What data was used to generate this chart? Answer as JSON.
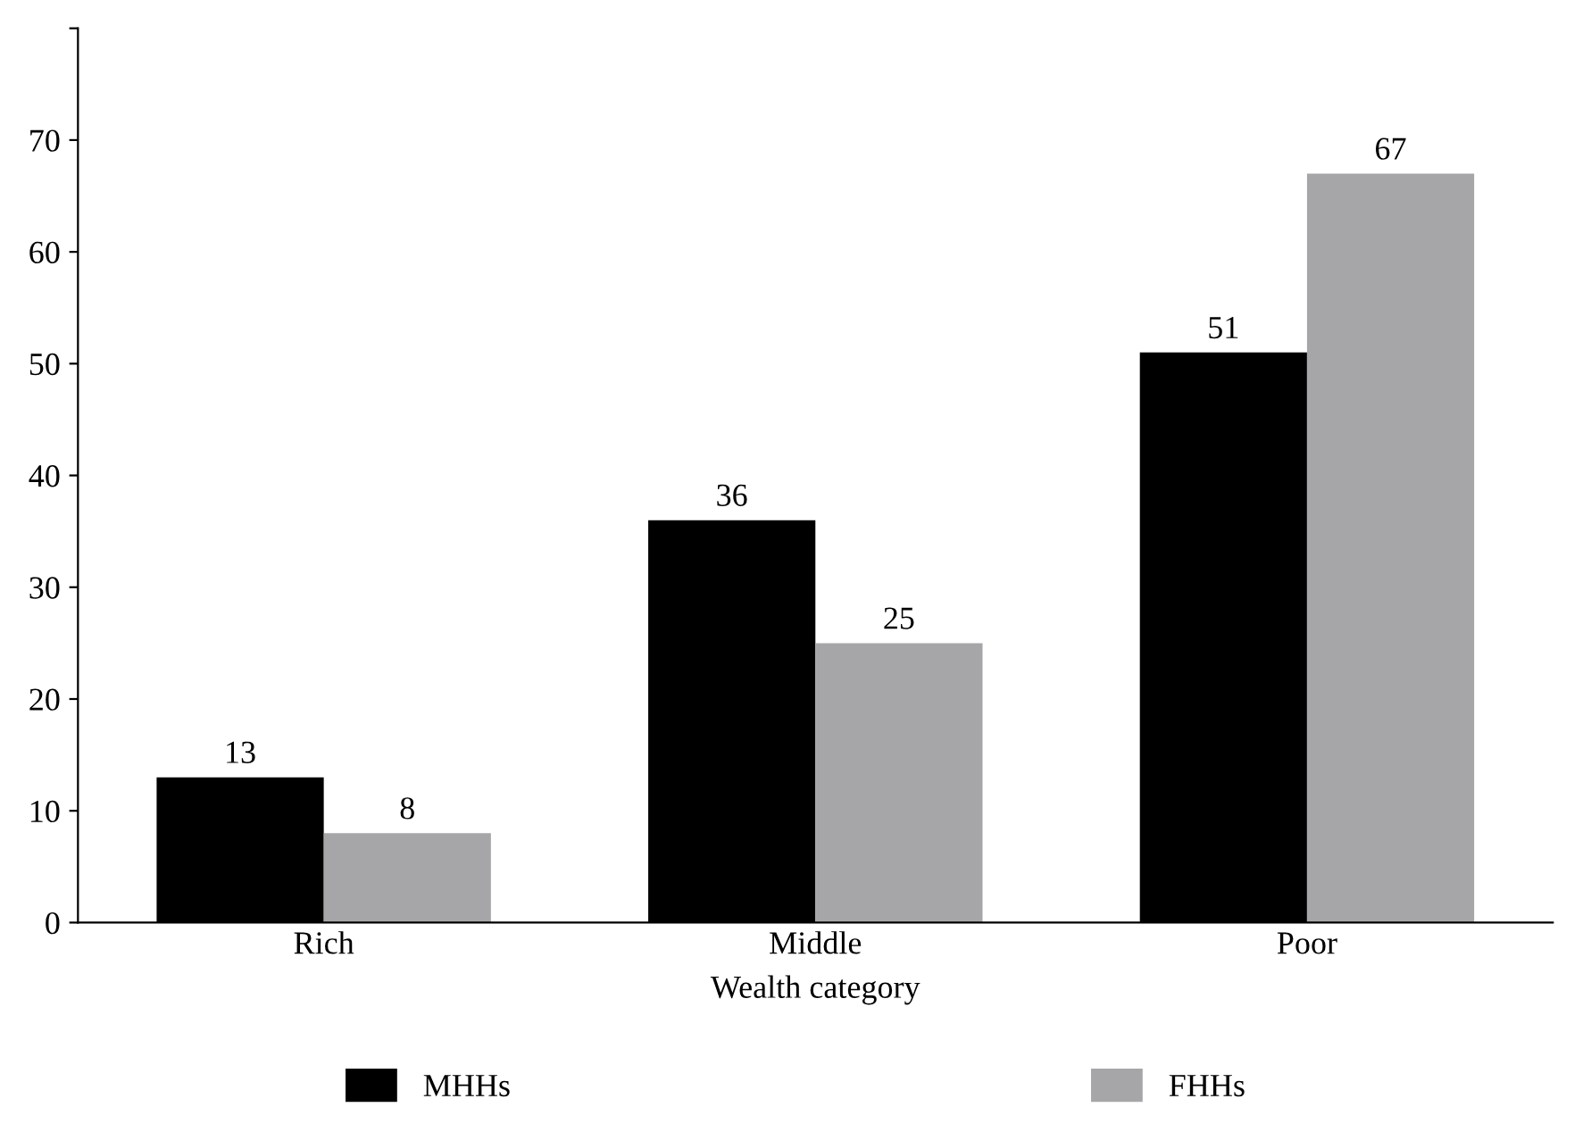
{
  "chart_data": {
    "type": "bar",
    "xlabel": "Wealth category",
    "categories": [
      "Rich",
      "Middle",
      "Poor"
    ],
    "series": [
      {
        "name": "MHHs",
        "color": "#000000",
        "values": [
          13,
          36,
          51
        ]
      },
      {
        "name": "FHHs",
        "color": "#a6a6a8",
        "values": [
          8,
          25,
          67
        ]
      }
    ],
    "ylim": [
      0,
      80
    ],
    "yticks": [
      0,
      10,
      20,
      30,
      40,
      50,
      60,
      70,
      {
        "value": 80,
        "label": null
      }
    ],
    "data_labels": true,
    "grid": false,
    "legend": "bottom"
  }
}
